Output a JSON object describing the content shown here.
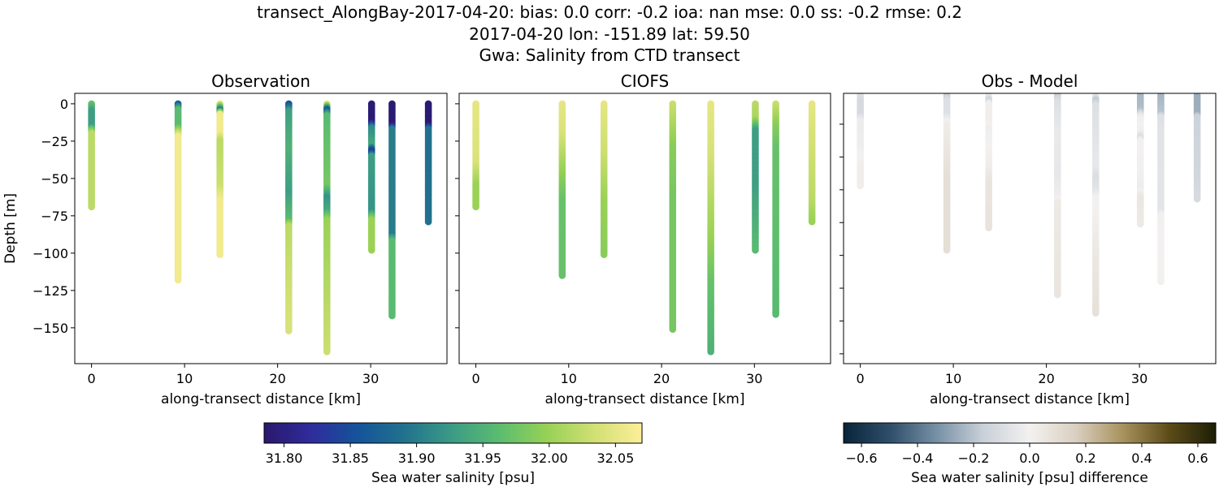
{
  "title_lines": [
    "transect_AlongBay-2017-04-20: bias: 0.0  corr: -0.2  ioa: nan  mse: 0.0  ss: -0.2  rmse: 0.2",
    "2017-04-20 lon: -151.89 lat: 59.50",
    "Gwa: Salinity from CTD transect"
  ],
  "chart_data": [
    {
      "type": "scatter",
      "title": "Observation",
      "xlabel": "along-transect distance [km]",
      "ylabel": "Depth [m]",
      "xlim": [
        -1.8,
        38.2
      ],
      "ylim": [
        -174,
        7
      ],
      "xticks": [
        0,
        10,
        20,
        30
      ],
      "yticks": [
        0,
        -25,
        -50,
        -75,
        -100,
        -125,
        -150
      ],
      "ytick_labels": [
        "0",
        "−25",
        "−50",
        "−75",
        "−100",
        "−125",
        "−150"
      ],
      "xtick_labels": [
        "0",
        "10",
        "20",
        "30"
      ],
      "colormap": "haline",
      "casts": [
        {
          "distance_km": 0.0,
          "max_depth_m": 69,
          "profile": [
            [
              0,
              31.97
            ],
            [
              5,
              31.93
            ],
            [
              15,
              31.93
            ],
            [
              20,
              32.02
            ],
            [
              69,
              32.02
            ]
          ]
        },
        {
          "distance_km": 9.3,
          "max_depth_m": 118,
          "profile": [
            [
              0,
              31.86
            ],
            [
              4,
              31.96
            ],
            [
              15,
              31.96
            ],
            [
              22,
              32.06
            ],
            [
              118,
              32.06
            ]
          ]
        },
        {
          "distance_km": 13.8,
          "max_depth_m": 101,
          "profile": [
            [
              0,
              32.05
            ],
            [
              4,
              31.9
            ],
            [
              7,
              32.06
            ],
            [
              20,
              32.06
            ],
            [
              25,
              32.02
            ],
            [
              55,
              32.03
            ],
            [
              65,
              32.06
            ],
            [
              101,
              32.06
            ]
          ]
        },
        {
          "distance_km": 21.2,
          "max_depth_m": 152,
          "profile": [
            [
              0,
              31.85
            ],
            [
              5,
              31.93
            ],
            [
              30,
              31.95
            ],
            [
              60,
              31.93
            ],
            [
              78,
              31.96
            ],
            [
              82,
              32.02
            ],
            [
              152,
              32.04
            ]
          ]
        },
        {
          "distance_km": 25.3,
          "max_depth_m": 166,
          "profile": [
            [
              0,
              32.05
            ],
            [
              4,
              31.86
            ],
            [
              8,
              31.96
            ],
            [
              55,
              31.98
            ],
            [
              63,
              31.92
            ],
            [
              72,
              31.94
            ],
            [
              78,
              32.0
            ],
            [
              166,
              32.03
            ]
          ]
        },
        {
          "distance_km": 30.1,
          "max_depth_m": 98,
          "profile": [
            [
              0,
              31.79
            ],
            [
              12,
              31.79
            ],
            [
              16,
              31.91
            ],
            [
              28,
              31.94
            ],
            [
              32,
              31.83
            ],
            [
              35,
              31.93
            ],
            [
              72,
              31.92
            ],
            [
              78,
              32.0
            ],
            [
              98,
              32.0
            ]
          ]
        },
        {
          "distance_km": 32.3,
          "max_depth_m": 142,
          "profile": [
            [
              0,
              31.79
            ],
            [
              14,
              31.79
            ],
            [
              17,
              31.9
            ],
            [
              88,
              31.9
            ],
            [
              92,
              31.96
            ],
            [
              142,
              31.96
            ]
          ]
        },
        {
          "distance_km": 36.2,
          "max_depth_m": 79,
          "profile": [
            [
              0,
              31.79
            ],
            [
              14,
              31.79
            ],
            [
              17,
              31.89
            ],
            [
              79,
              31.89
            ]
          ]
        }
      ]
    },
    {
      "type": "scatter",
      "title": "CIOFS",
      "xlabel": "along-transect distance [km]",
      "xlim": [
        -1.8,
        38.2
      ],
      "ylim": [
        -174,
        7
      ],
      "xticks": [
        0,
        10,
        20,
        30
      ],
      "xtick_labels": [
        "0",
        "10",
        "20",
        "30"
      ],
      "yticks": [
        0,
        -25,
        -50,
        -75,
        -100,
        -125,
        -150
      ],
      "colormap": "haline",
      "casts": [
        {
          "distance_km": 0.0,
          "max_depth_m": 69,
          "profile": [
            [
              0,
              32.05
            ],
            [
              40,
              32.04
            ],
            [
              55,
              32.0
            ],
            [
              69,
              32.0
            ]
          ]
        },
        {
          "distance_km": 9.3,
          "max_depth_m": 115,
          "profile": [
            [
              0,
              32.05
            ],
            [
              20,
              32.04
            ],
            [
              45,
              32.0
            ],
            [
              65,
              31.97
            ],
            [
              115,
              31.97
            ]
          ]
        },
        {
          "distance_km": 13.8,
          "max_depth_m": 101,
          "profile": [
            [
              0,
              32.05
            ],
            [
              35,
              32.03
            ],
            [
              65,
              32.0
            ],
            [
              101,
              31.99
            ]
          ]
        },
        {
          "distance_km": 21.2,
          "max_depth_m": 151,
          "profile": [
            [
              0,
              32.03
            ],
            [
              30,
              31.99
            ],
            [
              60,
              31.98
            ],
            [
              151,
              31.98
            ]
          ]
        },
        {
          "distance_km": 25.3,
          "max_depth_m": 166,
          "profile": [
            [
              0,
              32.05
            ],
            [
              30,
              32.04
            ],
            [
              90,
              32.0
            ],
            [
              120,
              31.97
            ],
            [
              166,
              31.95
            ]
          ]
        },
        {
          "distance_km": 30.1,
          "max_depth_m": 98,
          "profile": [
            [
              0,
              32.02
            ],
            [
              10,
              32.01
            ],
            [
              18,
              31.93
            ],
            [
              55,
              31.93
            ],
            [
              98,
              31.96
            ]
          ]
        },
        {
          "distance_km": 32.3,
          "max_depth_m": 141,
          "profile": [
            [
              0,
              32.03
            ],
            [
              15,
              31.99
            ],
            [
              30,
              31.97
            ],
            [
              141,
              31.96
            ]
          ]
        },
        {
          "distance_km": 36.2,
          "max_depth_m": 79,
          "profile": [
            [
              0,
              32.05
            ],
            [
              40,
              32.03
            ],
            [
              65,
              32.02
            ],
            [
              79,
              32.0
            ]
          ]
        }
      ]
    },
    {
      "type": "scatter",
      "title": "Obs - Model",
      "xlabel": "along-transect distance [km]",
      "xlim": [
        -1.8,
        38.2
      ],
      "ylim": [
        -207.5,
        -1.5
      ],
      "xticks": [
        0,
        10,
        20,
        30
      ],
      "xtick_labels": [
        "0",
        "10",
        "20",
        "30"
      ],
      "yticks": [
        -25,
        -50,
        -75,
        -100,
        -125,
        -150,
        -175,
        -200
      ],
      "colormap": "diff",
      "values": "observation minus CIOFS"
    }
  ],
  "colorbars": [
    {
      "label": "Sea water salinity [psu]",
      "vmin": 31.785,
      "vmax": 32.07,
      "ticks": [
        31.8,
        31.85,
        31.9,
        31.95,
        32.0,
        32.05
      ],
      "tick_labels": [
        "31.80",
        "31.85",
        "31.90",
        "31.95",
        "32.00",
        "32.05"
      ],
      "colors": [
        "#2a186c",
        "#2f2c9c",
        "#14549a",
        "#22738d",
        "#3c9c85",
        "#5cbd6f",
        "#98d155",
        "#d2e074",
        "#fdee99"
      ]
    },
    {
      "label": "Sea water salinity [psu] difference",
      "vmin": -0.664,
      "vmax": 0.664,
      "ticks": [
        -0.6,
        -0.4,
        -0.2,
        0.0,
        0.2,
        0.4,
        0.6
      ],
      "tick_labels": [
        "−0.6",
        "−0.4",
        "−0.2",
        "0.0",
        "0.2",
        "0.4",
        "0.6"
      ],
      "colors": [
        "#08243a",
        "#2f4e6a",
        "#7790a6",
        "#c9d0d8",
        "#f3f1f0",
        "#d9cfc0",
        "#a8925e",
        "#5c4b18",
        "#1c1e07"
      ]
    }
  ]
}
